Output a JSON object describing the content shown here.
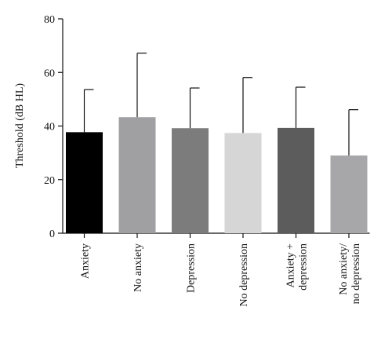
{
  "chart_data": {
    "type": "bar",
    "title": "",
    "xlabel": "",
    "ylabel": "Threshold (dB HL)",
    "ylim": [
      0,
      80
    ],
    "yticks": [
      0,
      20,
      40,
      60,
      80
    ],
    "grid": false,
    "categories": [
      "Anxiety",
      "No anxiety",
      "Depression",
      "No depression",
      "Anxiety +\ndepression",
      "No anxiety/\nno depression"
    ],
    "values": [
      37.7,
      43.3,
      39.2,
      37.4,
      39.3,
      29.0
    ],
    "error_upper": [
      53.6,
      67.2,
      54.2,
      58.1,
      54.5,
      46.1
    ],
    "colors": [
      "#000000",
      "#a0a0a3",
      "#7c7c7c",
      "#d6d6d6",
      "#5c5c5c",
      "#a7a7a9"
    ]
  }
}
